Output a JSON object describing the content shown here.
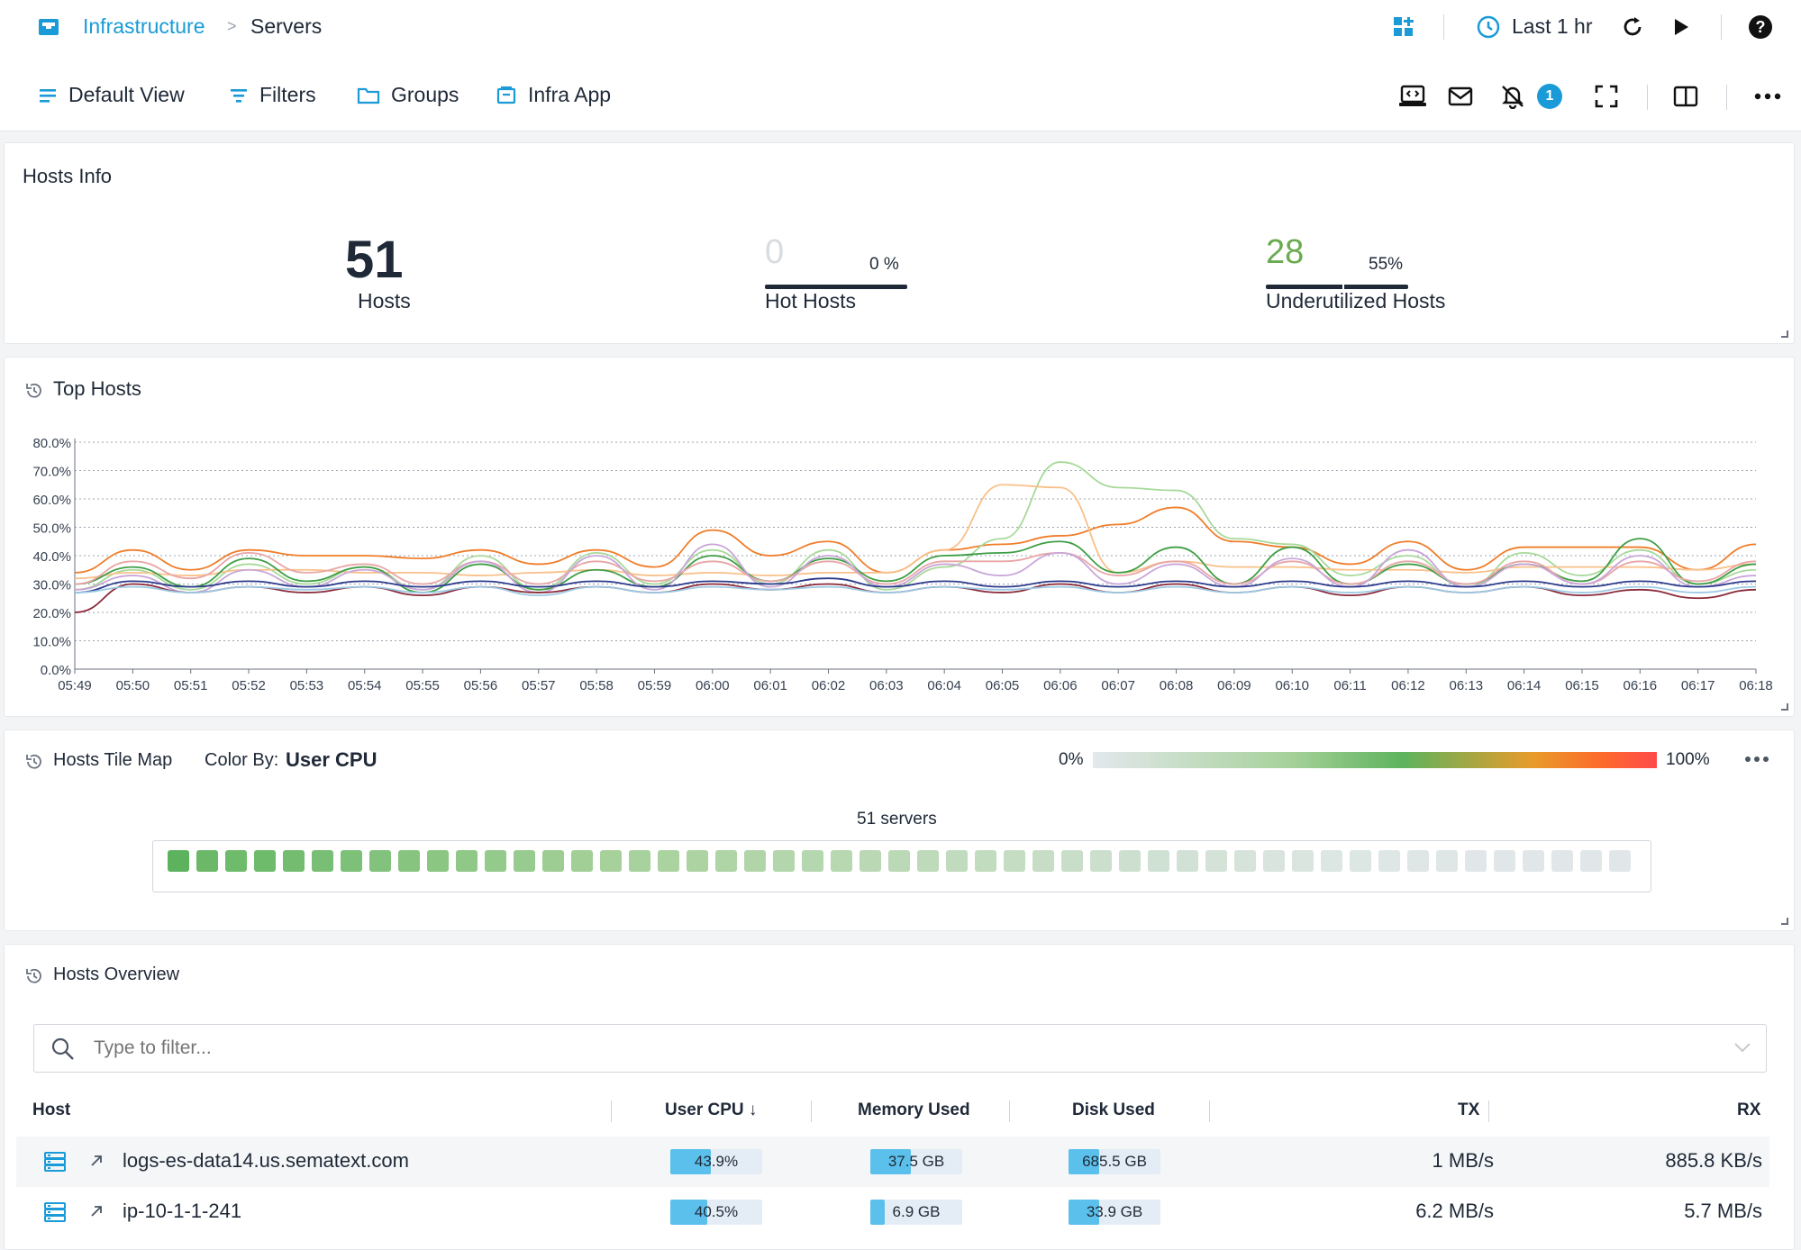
{
  "breadcrumb": {
    "app": "Infrastructure",
    "separator": ">",
    "page": "Servers"
  },
  "header": {
    "time_range": "Last 1 hr",
    "notification_count": "1"
  },
  "nav": {
    "default_view": "Default View",
    "filters": "Filters",
    "groups": "Groups",
    "infra_app": "Infra App"
  },
  "hosts_info": {
    "title": "Hosts Info",
    "hosts_count": "51",
    "hosts_label": "Hosts",
    "hot_count": "0",
    "hot_percent": "0 %",
    "hot_label": "Hot Hosts",
    "hot_fraction": 0,
    "under_count": "28",
    "under_percent": "55%",
    "under_label": "Underutilized Hosts",
    "under_fraction": 0.55
  },
  "top_hosts": {
    "title": "Top Hosts",
    "chart_data": {
      "type": "line",
      "ylim": [
        0,
        80
      ],
      "yticks": [
        "0.0%",
        "10.0%",
        "20.0%",
        "30.0%",
        "40.0%",
        "50.0%",
        "60.0%",
        "70.0%",
        "80.0%"
      ],
      "categories": [
        "05:49",
        "05:50",
        "05:51",
        "05:52",
        "05:53",
        "05:54",
        "05:55",
        "05:56",
        "05:57",
        "05:58",
        "05:59",
        "06:00",
        "06:01",
        "06:02",
        "06:03",
        "06:04",
        "06:05",
        "06:06",
        "06:07",
        "06:08",
        "06:09",
        "06:10",
        "06:11",
        "06:12",
        "06:13",
        "06:14",
        "06:15",
        "06:16",
        "06:17",
        "06:18"
      ],
      "series": [
        {
          "color": "#f07d2a",
          "values": [
            34,
            42,
            35,
            42,
            40,
            40,
            39,
            42,
            37,
            42,
            36,
            49,
            40,
            45,
            34,
            42,
            44,
            47,
            51,
            57,
            45,
            43,
            37,
            45,
            35,
            43,
            43,
            43,
            35,
            44
          ]
        },
        {
          "color": "#a8d99a",
          "values": [
            28,
            35,
            28,
            37,
            30,
            36,
            28,
            40,
            28,
            41,
            30,
            42,
            30,
            42,
            28,
            36,
            46,
            73,
            64,
            63,
            46,
            44,
            33,
            40,
            29,
            41,
            33,
            42,
            30,
            35
          ]
        },
        {
          "color": "#f9c08a",
          "values": [
            32,
            34,
            33,
            35,
            35,
            34,
            34,
            33,
            34,
            35,
            33,
            34,
            33,
            34,
            34,
            42,
            65,
            64,
            34,
            38,
            36,
            36,
            35,
            35,
            34,
            36,
            36,
            36,
            35,
            37
          ]
        },
        {
          "color": "#3e9e45",
          "values": [
            30,
            36,
            29,
            39,
            31,
            36,
            27,
            37,
            28,
            35,
            29,
            40,
            31,
            39,
            31,
            40,
            41,
            45,
            34,
            43,
            30,
            43,
            30,
            37,
            30,
            37,
            31,
            46,
            30,
            37
          ]
        },
        {
          "color": "#e8a6a6",
          "values": [
            30,
            38,
            32,
            41,
            34,
            37,
            30,
            38,
            30,
            38,
            31,
            38,
            31,
            38,
            30,
            38,
            38,
            41,
            33,
            38,
            30,
            38,
            30,
            38,
            30,
            38,
            30,
            38,
            31,
            38
          ]
        },
        {
          "color": "#c9a6d8",
          "values": [
            28,
            33,
            27,
            35,
            29,
            35,
            28,
            38,
            27,
            40,
            28,
            44,
            29,
            40,
            29,
            37,
            33,
            41,
            30,
            37,
            29,
            39,
            29,
            42,
            29,
            37,
            30,
            40,
            29,
            33
          ]
        },
        {
          "color": "#2b3a8c",
          "values": [
            27,
            31,
            29,
            31,
            29,
            31,
            29,
            31,
            29,
            31,
            29,
            31,
            30,
            32,
            29,
            31,
            29,
            31,
            29,
            31,
            29,
            31,
            29,
            31,
            29,
            31,
            29,
            31,
            29,
            31
          ]
        },
        {
          "color": "#8a2a3b",
          "values": [
            20,
            30,
            27,
            29,
            27,
            29,
            26,
            29,
            27,
            29,
            27,
            30,
            28,
            30,
            27,
            29,
            27,
            30,
            27,
            30,
            27,
            29,
            26,
            29,
            27,
            29,
            26,
            28,
            25,
            28
          ]
        },
        {
          "color": "#9cc9e4",
          "values": [
            27,
            29,
            27,
            29,
            28,
            29,
            27,
            29,
            26,
            29,
            27,
            29,
            28,
            29,
            27,
            29,
            28,
            29,
            27,
            29,
            27,
            29,
            27,
            29,
            27,
            29,
            27,
            29,
            27,
            29
          ]
        }
      ]
    }
  },
  "tile_map": {
    "title": "Hosts Tile Map",
    "color_by_label": "Color By:",
    "color_by_value": "User CPU",
    "legend_min": "0%",
    "legend_max": "100%",
    "servers_label": "51 servers",
    "tile_values": [
      44,
      41,
      40,
      40,
      39,
      38,
      37,
      36,
      35,
      34,
      33,
      32,
      31,
      30,
      29,
      28,
      27,
      26,
      25,
      24,
      23,
      22,
      21,
      20,
      19,
      18,
      17,
      16,
      15,
      14,
      13,
      12,
      11,
      10,
      9,
      8,
      7,
      6,
      5,
      4,
      3,
      3,
      2,
      2,
      2,
      1,
      1,
      1,
      1,
      1,
      1
    ]
  },
  "overview": {
    "title": "Hosts Overview",
    "filter_placeholder": "Type to filter...",
    "columns": {
      "host": "Host",
      "cpu": "User CPU ↓",
      "memory": "Memory Used",
      "disk": "Disk Used",
      "tx": "TX",
      "rx": "RX"
    },
    "rows": [
      {
        "host": "logs-es-data14.us.sematext.com",
        "cpu": "43.9%",
        "cpu_fraction": 0.439,
        "memory": "37.5 GB",
        "memory_fraction": 0.44,
        "disk": "685.5 GB",
        "disk_fraction": 0.33,
        "tx": "1 MB/s",
        "rx": "885.8 KB/s"
      },
      {
        "host": "ip-10-1-1-241",
        "cpu": "40.5%",
        "cpu_fraction": 0.405,
        "memory": "6.9 GB",
        "memory_fraction": 0.16,
        "disk": "33.9 GB",
        "disk_fraction": 0.33,
        "tx": "6.2 MB/s",
        "rx": "5.7 MB/s"
      }
    ]
  }
}
